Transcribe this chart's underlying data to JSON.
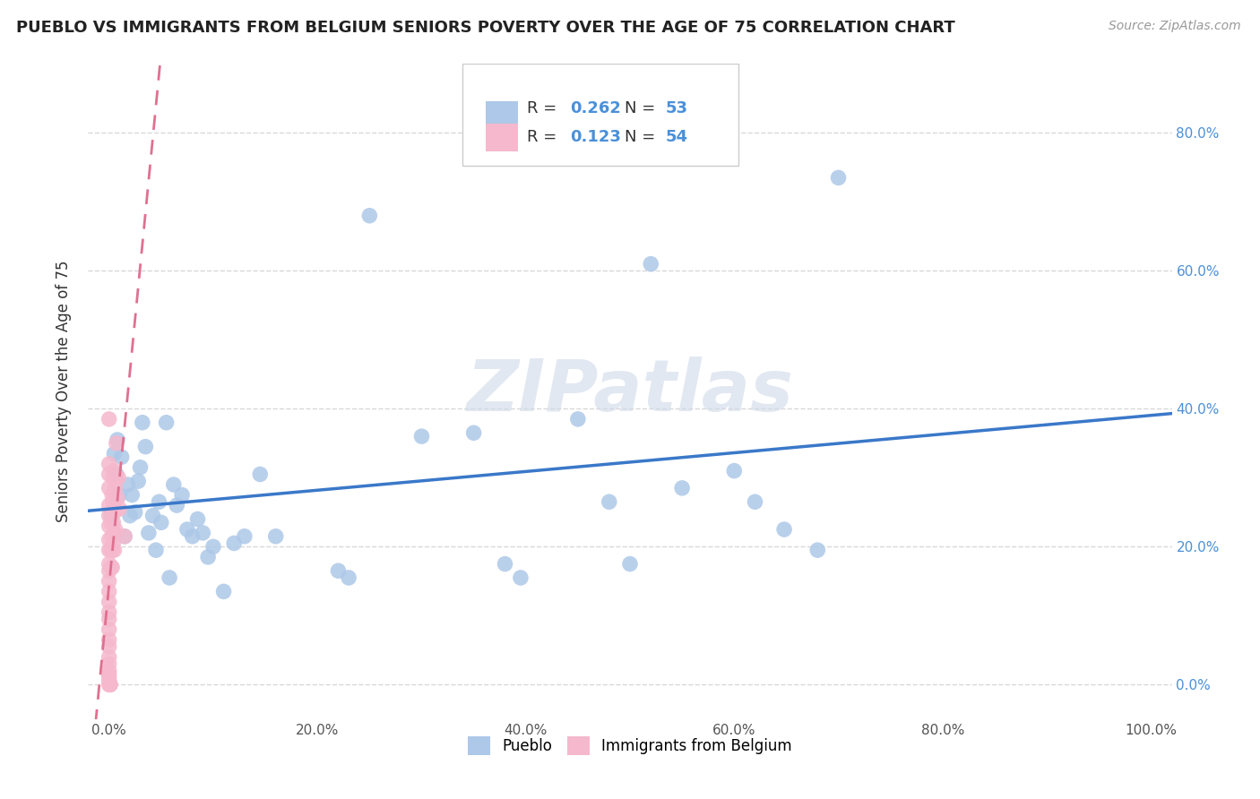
{
  "title": "PUEBLO VS IMMIGRANTS FROM BELGIUM SENIORS POVERTY OVER THE AGE OF 75 CORRELATION CHART",
  "source": "Source: ZipAtlas.com",
  "ylabel": "Seniors Poverty Over the Age of 75",
  "legend_bottom": [
    "Pueblo",
    "Immigrants from Belgium"
  ],
  "pueblo_R": 0.262,
  "pueblo_N": 53,
  "belgium_R": 0.123,
  "belgium_N": 54,
  "pueblo_color": "#adc8e8",
  "pueblo_line_color": "#3a78c9",
  "belgium_color": "#f5b8cc",
  "belgium_line_color": "#e07090",
  "pueblo_scatter": [
    [
      0.002,
      0.245
    ],
    [
      0.005,
      0.335
    ],
    [
      0.007,
      0.305
    ],
    [
      0.008,
      0.355
    ],
    [
      0.01,
      0.275
    ],
    [
      0.012,
      0.33
    ],
    [
      0.015,
      0.215
    ],
    [
      0.018,
      0.29
    ],
    [
      0.02,
      0.245
    ],
    [
      0.022,
      0.275
    ],
    [
      0.025,
      0.25
    ],
    [
      0.028,
      0.295
    ],
    [
      0.03,
      0.315
    ],
    [
      0.032,
      0.38
    ],
    [
      0.035,
      0.345
    ],
    [
      0.038,
      0.22
    ],
    [
      0.042,
      0.245
    ],
    [
      0.045,
      0.195
    ],
    [
      0.048,
      0.265
    ],
    [
      0.05,
      0.235
    ],
    [
      0.055,
      0.38
    ],
    [
      0.058,
      0.155
    ],
    [
      0.062,
      0.29
    ],
    [
      0.065,
      0.26
    ],
    [
      0.07,
      0.275
    ],
    [
      0.075,
      0.225
    ],
    [
      0.08,
      0.215
    ],
    [
      0.085,
      0.24
    ],
    [
      0.09,
      0.22
    ],
    [
      0.095,
      0.185
    ],
    [
      0.1,
      0.2
    ],
    [
      0.11,
      0.135
    ],
    [
      0.12,
      0.205
    ],
    [
      0.13,
      0.215
    ],
    [
      0.145,
      0.305
    ],
    [
      0.16,
      0.215
    ],
    [
      0.22,
      0.165
    ],
    [
      0.23,
      0.155
    ],
    [
      0.25,
      0.68
    ],
    [
      0.3,
      0.36
    ],
    [
      0.35,
      0.365
    ],
    [
      0.38,
      0.175
    ],
    [
      0.395,
      0.155
    ],
    [
      0.45,
      0.385
    ],
    [
      0.48,
      0.265
    ],
    [
      0.5,
      0.175
    ],
    [
      0.52,
      0.61
    ],
    [
      0.55,
      0.285
    ],
    [
      0.6,
      0.31
    ],
    [
      0.62,
      0.265
    ],
    [
      0.648,
      0.225
    ],
    [
      0.68,
      0.195
    ],
    [
      0.7,
      0.735
    ]
  ],
  "belgium_scatter": [
    [
      0.0,
      0.385
    ],
    [
      0.0,
      0.32
    ],
    [
      0.0,
      0.305
    ],
    [
      0.0,
      0.285
    ],
    [
      0.0,
      0.26
    ],
    [
      0.0,
      0.245
    ],
    [
      0.0,
      0.23
    ],
    [
      0.0,
      0.21
    ],
    [
      0.0,
      0.195
    ],
    [
      0.0,
      0.175
    ],
    [
      0.0,
      0.165
    ],
    [
      0.0,
      0.15
    ],
    [
      0.0,
      0.135
    ],
    [
      0.0,
      0.12
    ],
    [
      0.0,
      0.105
    ],
    [
      0.0,
      0.095
    ],
    [
      0.0,
      0.08
    ],
    [
      0.0,
      0.065
    ],
    [
      0.0,
      0.055
    ],
    [
      0.0,
      0.04
    ],
    [
      0.0,
      0.03
    ],
    [
      0.0,
      0.02
    ],
    [
      0.0,
      0.015
    ],
    [
      0.0,
      0.01
    ],
    [
      0.0,
      0.005
    ],
    [
      0.0,
      0.0
    ],
    [
      0.001,
      0.0
    ],
    [
      0.001,
      0.0
    ],
    [
      0.001,
      0.0
    ],
    [
      0.002,
      0.235
    ],
    [
      0.002,
      0.195
    ],
    [
      0.002,
      0.17
    ],
    [
      0.003,
      0.275
    ],
    [
      0.003,
      0.25
    ],
    [
      0.003,
      0.215
    ],
    [
      0.003,
      0.195
    ],
    [
      0.003,
      0.17
    ],
    [
      0.004,
      0.3
    ],
    [
      0.004,
      0.265
    ],
    [
      0.004,
      0.235
    ],
    [
      0.004,
      0.205
    ],
    [
      0.005,
      0.31
    ],
    [
      0.005,
      0.25
    ],
    [
      0.005,
      0.22
    ],
    [
      0.005,
      0.195
    ],
    [
      0.006,
      0.285
    ],
    [
      0.006,
      0.255
    ],
    [
      0.006,
      0.225
    ],
    [
      0.007,
      0.35
    ],
    [
      0.007,
      0.3
    ],
    [
      0.008,
      0.27
    ],
    [
      0.009,
      0.3
    ],
    [
      0.01,
      0.255
    ],
    [
      0.015,
      0.215
    ]
  ],
  "xlim": [
    -0.02,
    1.02
  ],
  "ylim": [
    -0.05,
    0.9
  ],
  "xticks": [
    0.0,
    0.2,
    0.4,
    0.6,
    0.8,
    1.0
  ],
  "xticklabels": [
    "0.0%",
    "20.0%",
    "40.0%",
    "60.0%",
    "80.0%",
    "100.0%"
  ],
  "ytick_positions": [
    0.0,
    0.2,
    0.4,
    0.6,
    0.8
  ],
  "yticklabels_right": [
    "0.0%",
    "20.0%",
    "40.0%",
    "60.0%",
    "80.0%"
  ],
  "watermark": "ZIPatlas",
  "background_color": "#ffffff",
  "grid_color": "#d8d8d8"
}
